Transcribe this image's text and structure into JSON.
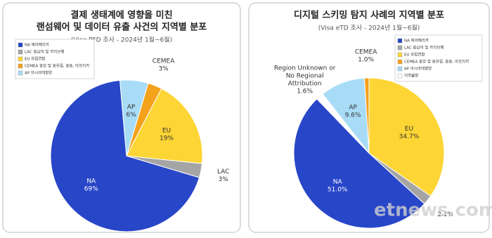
{
  "chart_data": [
    {
      "type": "pie",
      "title": [
        "결제 생태계에 영향을 미친",
        "랜섬웨어 및 데이터 유출 사건의 지역별 분포"
      ],
      "subtitle": "(Visa PFD 조사 - 2024년 1월~6월)",
      "categories": [
        "NA 북아메리카",
        "LAC 중남미 및 카리브해",
        "EU 유럽연합",
        "CEMEA 중앙 및 동유럽, 중동, 아프리카",
        "AP 아시아태평양"
      ],
      "slice_labels": [
        [
          "NA"
        ],
        [
          "LAC"
        ],
        [
          "EU"
        ],
        [
          "CEMEA"
        ],
        [
          "AP"
        ]
      ],
      "values": [
        69,
        3,
        19,
        3,
        6
      ],
      "value_labels": [
        "69%",
        "3%",
        "19%",
        "3%",
        "6%"
      ],
      "colors": [
        "#2846c8",
        "#a5a5a5",
        "#fdd534",
        "#f4a11c",
        "#a8dcf6"
      ]
    },
    {
      "type": "pie",
      "title": [
        "디지털 스키밍 탐지 사례의 지역별 분포"
      ],
      "subtitle": "(Visa eTD 조사 - 2024년 1월~6월)",
      "categories": [
        "NA 북아메리카",
        "LAC 중남미 및 카리브해",
        "EU 유럽연합",
        "CEMEA 중앙 및 동유럽, 중동, 아프리카",
        "AP 아시아태평양",
        "지역불명"
      ],
      "slice_labels": [
        [
          "NA"
        ],
        null,
        [
          "EU"
        ],
        [
          "CEMEA"
        ],
        [
          "AP"
        ],
        [
          "Region Unknown or",
          "No Regional",
          "Attribution"
        ]
      ],
      "values": [
        51.0,
        2.1,
        34.7,
        1.0,
        9.6,
        1.6
      ],
      "value_labels": [
        "51.0%",
        "2.1%",
        "34.7%",
        "1.0%",
        "9.6%",
        "1.6%"
      ],
      "colors": [
        "#2846c8",
        "#a5a5a5",
        "#fdd534",
        "#f4a11c",
        "#a8dcf6",
        "#ffffff"
      ]
    }
  ],
  "watermark": "etnews.com"
}
